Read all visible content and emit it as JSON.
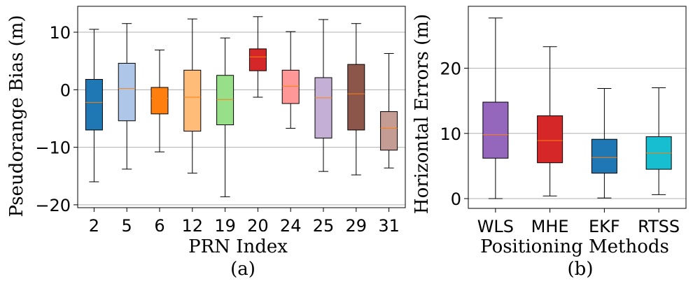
{
  "chart_data": [
    {
      "type": "boxplot",
      "caption": "(a)",
      "xlabel": "PRN Index",
      "ylabel": "Pseudorange Bias (m)",
      "ylim": [
        -20.5,
        14.5
      ],
      "yticks": [
        -20,
        -10,
        0,
        10
      ],
      "ytick_labels": [
        "−20",
        "−10",
        "0",
        "10"
      ],
      "grid": "horizontal",
      "categories": [
        "2",
        "5",
        "6",
        "12",
        "19",
        "20",
        "24",
        "25",
        "29",
        "31"
      ],
      "boxes": [
        {
          "name": "2",
          "whisker_low": -16.0,
          "q1": -7.0,
          "median": -2.2,
          "q3": 1.8,
          "whisker_high": 10.5,
          "color": "#1f77b4"
        },
        {
          "name": "5",
          "whisker_low": -13.8,
          "q1": -5.4,
          "median": 0.2,
          "q3": 4.6,
          "whisker_high": 11.5,
          "color": "#aec7e8"
        },
        {
          "name": "6",
          "whisker_low": -10.8,
          "q1": -4.2,
          "median": -1.5,
          "q3": 0.4,
          "whisker_high": 6.9,
          "color": "#ff7f0e"
        },
        {
          "name": "12",
          "whisker_low": -14.5,
          "q1": -7.2,
          "median": -1.3,
          "q3": 3.4,
          "whisker_high": 12.3,
          "color": "#ffbb78"
        },
        {
          "name": "19",
          "whisker_low": -18.6,
          "q1": -6.1,
          "median": -1.7,
          "q3": 2.5,
          "whisker_high": 9.0,
          "color": "#98df8a"
        },
        {
          "name": "20",
          "whisker_low": -1.3,
          "q1": 3.3,
          "median": 5.7,
          "q3": 7.1,
          "whisker_high": 12.7,
          "color": "#d62728"
        },
        {
          "name": "24",
          "whisker_low": -6.7,
          "q1": -2.4,
          "median": 0.6,
          "q3": 3.4,
          "whisker_high": 10.1,
          "color": "#ff9896"
        },
        {
          "name": "25",
          "whisker_low": -14.2,
          "q1": -8.4,
          "median": -1.4,
          "q3": 2.1,
          "whisker_high": 12.2,
          "color": "#c5b0d5"
        },
        {
          "name": "29",
          "whisker_low": -14.8,
          "q1": -7.0,
          "median": -0.7,
          "q3": 4.4,
          "whisker_high": 11.5,
          "color": "#8c564b"
        },
        {
          "name": "31",
          "whisker_low": -13.6,
          "q1": -10.5,
          "median": -6.7,
          "q3": -3.8,
          "whisker_high": 6.3,
          "color": "#c49c94"
        }
      ]
    },
    {
      "type": "boxplot",
      "caption": "(b)",
      "xlabel": "Positioning Methods",
      "ylabel": "Horizontal Errors (m)",
      "ylim": [
        -1.5,
        29.5
      ],
      "yticks": [
        0,
        10,
        20
      ],
      "ytick_labels": [
        "0",
        "10",
        "20"
      ],
      "grid": "horizontal",
      "categories": [
        "WLS",
        "MHE",
        "EKF",
        "RTSS"
      ],
      "boxes": [
        {
          "name": "WLS",
          "whisker_low": 0.0,
          "q1": 6.2,
          "median": 9.8,
          "q3": 14.8,
          "whisker_high": 27.7,
          "color": "#9467bd"
        },
        {
          "name": "MHE",
          "whisker_low": 0.4,
          "q1": 5.5,
          "median": 8.9,
          "q3": 12.7,
          "whisker_high": 23.3,
          "color": "#d62728"
        },
        {
          "name": "EKF",
          "whisker_low": 0.1,
          "q1": 3.9,
          "median": 6.3,
          "q3": 9.1,
          "whisker_high": 16.9,
          "color": "#1f77b4"
        },
        {
          "name": "RTSS",
          "whisker_low": 0.6,
          "q1": 4.5,
          "median": 7.0,
          "q3": 9.5,
          "whisker_high": 17.0,
          "color": "#17becf"
        }
      ]
    }
  ],
  "style": {
    "median_color": "#ff7f0e",
    "grid_color": "#b0b0b0",
    "axis_color": "#000000"
  }
}
